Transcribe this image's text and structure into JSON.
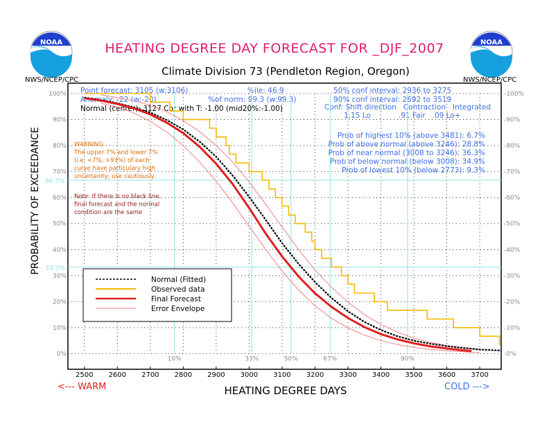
{
  "header": {
    "title": "HEATING DEGREE DAY FORECAST FOR _DJF_2007",
    "subtitle": "Climate Division 73 (Pendleton Region, Oregon)",
    "logo_text": "NOAA",
    "agency_left": "NWS/NCEP/CPC",
    "agency_right": "NWS/NCEP/CPC"
  },
  "info": {
    "point_forecast": "Point forecast: 3105 (w:3106)",
    "anomaly": "Anomaly: -22 (w:-20)",
    "normal": "Normal (center): 3127 Cor with T: -1.00 (mid20%:-1.00)",
    "percentile": "%ile: 46.9",
    "pct_norm": "%of norm:  99.3 (w:99.3)",
    "conf50": "50% conf interval: 2936 to 3275",
    "conf90": "90% conf interval: 2692 to 3519",
    "conf_header": "Conf: Shift direction   Contraction   Integrated",
    "conf_values": "1.15 Lo            .91 Fair   .09 Lo+"
  },
  "probabilities": [
    "Prob of highest 10% (above 3481):  6.7%",
    "Prob of above normal (above 3246): 28.8%",
    "Prob of near normal (3008 to 3246): 36.3%",
    "Prob of below normal (below 3008): 34.9%",
    "Prob of lowest 10% (below 2773):  9.3%"
  ],
  "warning": [
    "WARNING:",
    "The upper 7% and lower 7%",
    "(i.e. <7%, >93%) of each",
    "curve have particulary high",
    "uncertainty; use cautiously."
  ],
  "note": [
    "Note: If there is no black line,",
    "final forecast and  the normal",
    "condition are the same"
  ],
  "footer": {
    "warm": "<--- WARM",
    "cold": "COLD --->"
  },
  "colors": {
    "title": "#e01a6e",
    "text_blue": "#3d6ee8",
    "grid_cyan": "#93e0e8",
    "red_curve": "#e01e1e",
    "envelope": "#f08080",
    "observed": "#f5b800",
    "warning": "#e06a00",
    "note": "#8b1a1a"
  },
  "chart_data": {
    "type": "line",
    "xlabel": "HEATING DEGREE DAYS",
    "ylabel": "PROBABILITY OF EXCEEDANCE",
    "xlim": [
      2450,
      3765
    ],
    "ylim": [
      -0.06,
      1.04
    ],
    "x_ticks": [
      2500,
      2600,
      2700,
      2800,
      2900,
      3000,
      3100,
      3200,
      3300,
      3400,
      3500,
      3600,
      3700
    ],
    "y_ticks": [
      0,
      0.1,
      0.2,
      0.3,
      0.4,
      0.5,
      0.6,
      0.7,
      0.8,
      0.9,
      1.0
    ],
    "y_tick_labels": [
      "0%",
      "10%",
      "20%",
      "30%",
      "40%",
      "50%",
      "60%",
      "70%",
      "80%",
      "90%",
      "100%"
    ],
    "ref_levels": [
      {
        "value": 0.667,
        "label": "66.7%"
      },
      {
        "value": 0.333,
        "label": "33.3%"
      }
    ],
    "percentile_lines": [
      {
        "x": 2773,
        "label": "10%"
      },
      {
        "x": 3008,
        "label": "33%"
      },
      {
        "x": 3127,
        "label": "50%"
      },
      {
        "x": 3246,
        "label": "67%"
      },
      {
        "x": 3481,
        "label": "90%"
      }
    ],
    "legend": [
      "Normal (Fitted)",
      "Observed data",
      "Final Forecast",
      "Error Envelope"
    ],
    "series": [
      {
        "name": "Normal (Fitted)",
        "style": "dashed-black",
        "x": [
          2500,
          2550,
          2600,
          2650,
          2700,
          2750,
          2800,
          2850,
          2900,
          2950,
          3000,
          3050,
          3100,
          3150,
          3200,
          3250,
          3300,
          3350,
          3400,
          3450,
          3500,
          3550,
          3600,
          3650,
          3700,
          3765
        ],
        "y": [
          0.985,
          0.975,
          0.963,
          0.947,
          0.927,
          0.898,
          0.862,
          0.815,
          0.757,
          0.685,
          0.603,
          0.515,
          0.425,
          0.345,
          0.275,
          0.214,
          0.163,
          0.122,
          0.091,
          0.067,
          0.05,
          0.038,
          0.029,
          0.022,
          0.016,
          0.012
        ]
      },
      {
        "name": "Final Forecast",
        "style": "red",
        "x": [
          2500,
          2550,
          2600,
          2650,
          2700,
          2750,
          2800,
          2850,
          2900,
          2950,
          3000,
          3050,
          3100,
          3150,
          3200,
          3250,
          3300,
          3350,
          3400,
          3450,
          3500,
          3550,
          3600,
          3650,
          3675
        ],
        "y": [
          0.982,
          0.973,
          0.96,
          0.943,
          0.92,
          0.888,
          0.848,
          0.795,
          0.73,
          0.652,
          0.56,
          0.462,
          0.374,
          0.297,
          0.232,
          0.18,
          0.137,
          0.102,
          0.075,
          0.055,
          0.04,
          0.028,
          0.02,
          0.013,
          0.01
        ]
      },
      {
        "name": "Error Envelope Upper",
        "style": "thin-red",
        "x": [
          2550,
          2600,
          2650,
          2700,
          2750,
          2800,
          2850,
          2900,
          2950,
          3000,
          3050,
          3100,
          3150,
          3200,
          3250,
          3300,
          3350,
          3400,
          3450,
          3500,
          3550,
          3600,
          3650,
          3700
        ],
        "y": [
          0.995,
          0.985,
          0.972,
          0.955,
          0.93,
          0.896,
          0.853,
          0.8,
          0.737,
          0.66,
          0.575,
          0.487,
          0.4,
          0.322,
          0.255,
          0.198,
          0.15,
          0.112,
          0.083,
          0.06,
          0.043,
          0.031,
          0.022,
          0.015
        ]
      },
      {
        "name": "Error Envelope Lower",
        "style": "thin-red",
        "x": [
          2550,
          2600,
          2650,
          2700,
          2750,
          2800,
          2850,
          2900,
          2950,
          3000,
          3050,
          3100,
          3150,
          3200,
          3250,
          3300,
          3350,
          3400,
          3450,
          3500,
          3550,
          3600,
          3650,
          3700
        ],
        "y": [
          0.963,
          0.948,
          0.925,
          0.893,
          0.852,
          0.8,
          0.737,
          0.663,
          0.58,
          0.49,
          0.401,
          0.318,
          0.245,
          0.184,
          0.136,
          0.099,
          0.071,
          0.05,
          0.035,
          0.024,
          0.016,
          0.011,
          0.007,
          0.004
        ]
      },
      {
        "name": "Observed data",
        "style": "step-orange",
        "x": [
          2500,
          2680,
          2700,
          2720,
          2760,
          2780,
          2800,
          2840,
          2870,
          2880,
          2900,
          2930,
          2940,
          2960,
          2990,
          3000,
          3020,
          3040,
          3060,
          3080,
          3100,
          3120,
          3140,
          3170,
          3190,
          3200,
          3220,
          3250,
          3280,
          3300,
          3320,
          3380,
          3420,
          3450,
          3540,
          3560,
          3620,
          3650,
          3700,
          3760
        ],
        "y": [
          1.0,
          1.0,
          0.967,
          0.967,
          0.933,
          0.933,
          0.9,
          0.9,
          0.9,
          0.867,
          0.833,
          0.8,
          0.767,
          0.733,
          0.733,
          0.7,
          0.7,
          0.667,
          0.633,
          0.6,
          0.567,
          0.533,
          0.5,
          0.467,
          0.433,
          0.4,
          0.367,
          0.333,
          0.3,
          0.267,
          0.233,
          0.2,
          0.167,
          0.167,
          0.133,
          0.133,
          0.1,
          0.1,
          0.067,
          0.033
        ]
      }
    ]
  }
}
